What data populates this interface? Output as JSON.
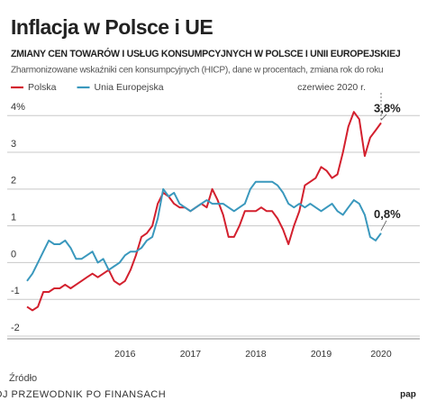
{
  "chart_data": {
    "type": "line",
    "title": "Inflacja w Polsce i UE",
    "subtitle": "ZMIANY CEN TOWARÓW I USŁUG KONSUMPCYJNYCH W POLSCE I UNII EUROPEJSKIEJ",
    "description": "Zharmonizowane wskaźniki cen konsumpcyjnych (HICP), dane w procentach, zmiana rok do roku",
    "annotation": "czerwiec 2020 r.",
    "source": "Źródło",
    "watermark": "TWÓJ PRZEWODNIK PO FINANSACH",
    "logo": "pap",
    "categories": [
      null,
      null,
      null,
      null,
      null,
      null,
      null,
      null,
      null,
      null,
      null,
      null,
      null,
      null,
      null,
      null,
      null,
      null,
      "2016",
      null,
      null,
      null,
      null,
      null,
      null,
      null,
      null,
      null,
      null,
      null,
      "2017",
      null,
      null,
      null,
      null,
      null,
      null,
      null,
      null,
      null,
      null,
      null,
      "2018",
      null,
      null,
      null,
      null,
      null,
      null,
      null,
      null,
      null,
      null,
      null,
      "2019",
      null,
      null,
      null,
      null,
      null,
      null,
      null,
      null,
      null,
      null,
      "2020"
    ],
    "series": [
      {
        "name": "Polska",
        "color": "#d3202e",
        "values": [
          -1.2,
          -1.3,
          -1.2,
          -0.8,
          -0.8,
          -0.7,
          -0.7,
          -0.6,
          -0.7,
          -0.6,
          -0.5,
          -0.4,
          -0.3,
          -0.4,
          -0.3,
          -0.2,
          -0.5,
          -0.6,
          -0.5,
          -0.2,
          0.2,
          0.7,
          0.8,
          1.0,
          1.6,
          1.9,
          1.8,
          1.6,
          1.5,
          1.5,
          1.4,
          1.5,
          1.6,
          1.5,
          2.0,
          1.7,
          1.3,
          0.7,
          0.7,
          1.0,
          1.4,
          1.4,
          1.4,
          1.5,
          1.4,
          1.4,
          1.2,
          0.9,
          0.5,
          1.0,
          1.4,
          2.1,
          2.2,
          2.3,
          2.6,
          2.5,
          2.3,
          2.4,
          3.0,
          3.7,
          4.1,
          3.9,
          2.9,
          3.4,
          3.6,
          3.8
        ],
        "value_labels": [
          null,
          null,
          null,
          null,
          null,
          null,
          null,
          null,
          null,
          null,
          null,
          null,
          null,
          null,
          null,
          null,
          null,
          null,
          null,
          null,
          null,
          null,
          null,
          null,
          null,
          null,
          null,
          null,
          null,
          null,
          null,
          null,
          null,
          null,
          null,
          null,
          null,
          null,
          null,
          null,
          null,
          null,
          null,
          null,
          null,
          null,
          null,
          null,
          null,
          null,
          null,
          null,
          null,
          null,
          null,
          null,
          null,
          null,
          null,
          null,
          null,
          null,
          null,
          null,
          null,
          "3,8%"
        ]
      },
      {
        "name": "Unia Europejska",
        "color": "#3a98bd",
        "values": [
          -0.5,
          -0.3,
          0.0,
          0.3,
          0.6,
          0.5,
          0.5,
          0.6,
          0.4,
          0.1,
          0.1,
          0.2,
          0.3,
          0.0,
          0.1,
          -0.2,
          -0.1,
          0.0,
          0.2,
          0.3,
          0.3,
          0.4,
          0.6,
          0.7,
          1.2,
          2.0,
          1.8,
          1.9,
          1.6,
          1.5,
          1.4,
          1.5,
          1.6,
          1.7,
          1.6,
          1.6,
          1.6,
          1.5,
          1.4,
          1.5,
          1.6,
          2.0,
          2.2,
          2.2,
          2.2,
          2.2,
          2.1,
          1.9,
          1.6,
          1.5,
          1.6,
          1.5,
          1.6,
          1.5,
          1.4,
          1.5,
          1.6,
          1.4,
          1.3,
          1.5,
          1.7,
          1.6,
          1.3,
          0.7,
          0.6,
          0.8
        ],
        "value_labels": [
          null,
          null,
          null,
          null,
          null,
          null,
          null,
          null,
          null,
          null,
          null,
          null,
          null,
          null,
          null,
          null,
          null,
          null,
          null,
          null,
          null,
          null,
          null,
          null,
          null,
          null,
          null,
          null,
          null,
          null,
          null,
          null,
          null,
          null,
          null,
          null,
          null,
          null,
          null,
          null,
          null,
          null,
          null,
          null,
          null,
          null,
          null,
          null,
          null,
          null,
          null,
          null,
          null,
          null,
          null,
          null,
          null,
          null,
          null,
          null,
          null,
          null,
          null,
          null,
          null,
          "0,8%"
        ]
      }
    ],
    "ylim": [
      -2,
      4.3
    ],
    "yticks": [
      -2,
      -1,
      0,
      1,
      2,
      3,
      {
        "value": 4,
        "label": "4%"
      }
    ],
    "grid": true
  }
}
